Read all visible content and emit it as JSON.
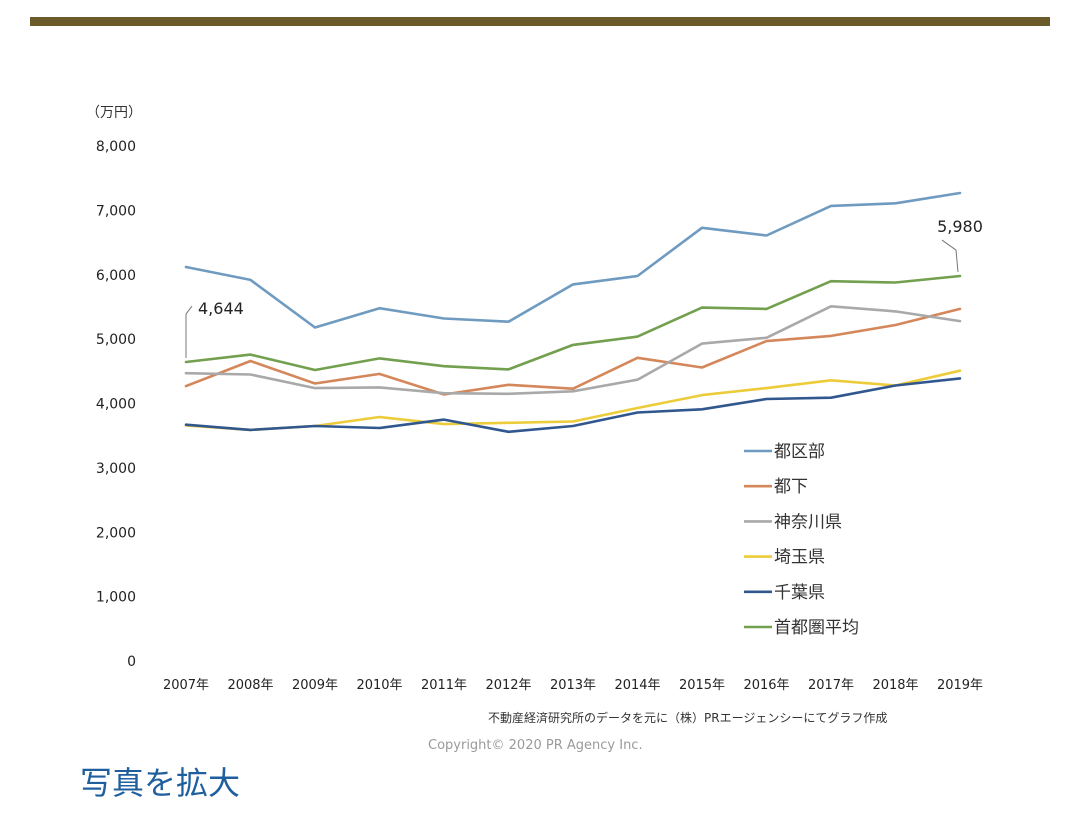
{
  "page": {
    "expand_link": "写真を拡大"
  },
  "colors": {
    "top_bar": "#6b5b2a",
    "link": "#1f5f9e"
  },
  "chart_data": {
    "type": "line",
    "title": "",
    "xlabel": "",
    "ylabel": "（万円）",
    "ylim": [
      0,
      8000
    ],
    "yticks": [
      0,
      1000,
      2000,
      3000,
      4000,
      5000,
      6000,
      7000,
      8000
    ],
    "ytick_labels": [
      "0",
      "1,000",
      "2,000",
      "3,000",
      "4,000",
      "5,000",
      "6,000",
      "7,000",
      "8,000"
    ],
    "grid": false,
    "legend_position": "right-middle",
    "categories": [
      "2007年",
      "2008年",
      "2009年",
      "2010年",
      "2011年",
      "2012年",
      "2013年",
      "2014年",
      "2015年",
      "2016年",
      "2017年",
      "2018年",
      "2019年"
    ],
    "series": [
      {
        "name": "都区部",
        "color": "#6f9bc0",
        "values": [
          6120,
          5920,
          5180,
          5480,
          5320,
          5270,
          5850,
          5980,
          6730,
          6610,
          7070,
          7110,
          7270
        ]
      },
      {
        "name": "都下",
        "color": "#d4875a",
        "values": [
          4270,
          4660,
          4310,
          4460,
          4140,
          4290,
          4230,
          4710,
          4560,
          4970,
          5050,
          5220,
          5470
        ]
      },
      {
        "name": "神奈川県",
        "color": "#a9a9a9",
        "values": [
          4470,
          4450,
          4240,
          4250,
          4160,
          4150,
          4190,
          4370,
          4930,
          5020,
          5510,
          5430,
          5280
        ]
      },
      {
        "name": "埼玉県",
        "color": "#eccc3a",
        "values": [
          3660,
          3590,
          3650,
          3790,
          3680,
          3700,
          3720,
          3930,
          4130,
          4240,
          4360,
          4280,
          4510
        ]
      },
      {
        "name": "千葉県",
        "color": "#31578f",
        "values": [
          3670,
          3590,
          3650,
          3620,
          3750,
          3560,
          3650,
          3860,
          3910,
          4070,
          4090,
          4280,
          4390
        ]
      },
      {
        "name": "首都圏平均",
        "color": "#72a04e",
        "values": [
          4644,
          4760,
          4520,
          4700,
          4580,
          4530,
          4910,
          5040,
          5490,
          5470,
          5900,
          5880,
          5980
        ]
      }
    ],
    "annotations": [
      {
        "text": "4,644",
        "category": "2007年",
        "series": "首都圏平均"
      },
      {
        "text": "5,980",
        "category": "2019年",
        "series": "首都圏平均"
      }
    ],
    "source_note": "不動産経済研究所のデータを元に（株）PRエージェンシーにてグラフ作成",
    "copyright": "Copyright© 2020 PR Agency Inc."
  }
}
